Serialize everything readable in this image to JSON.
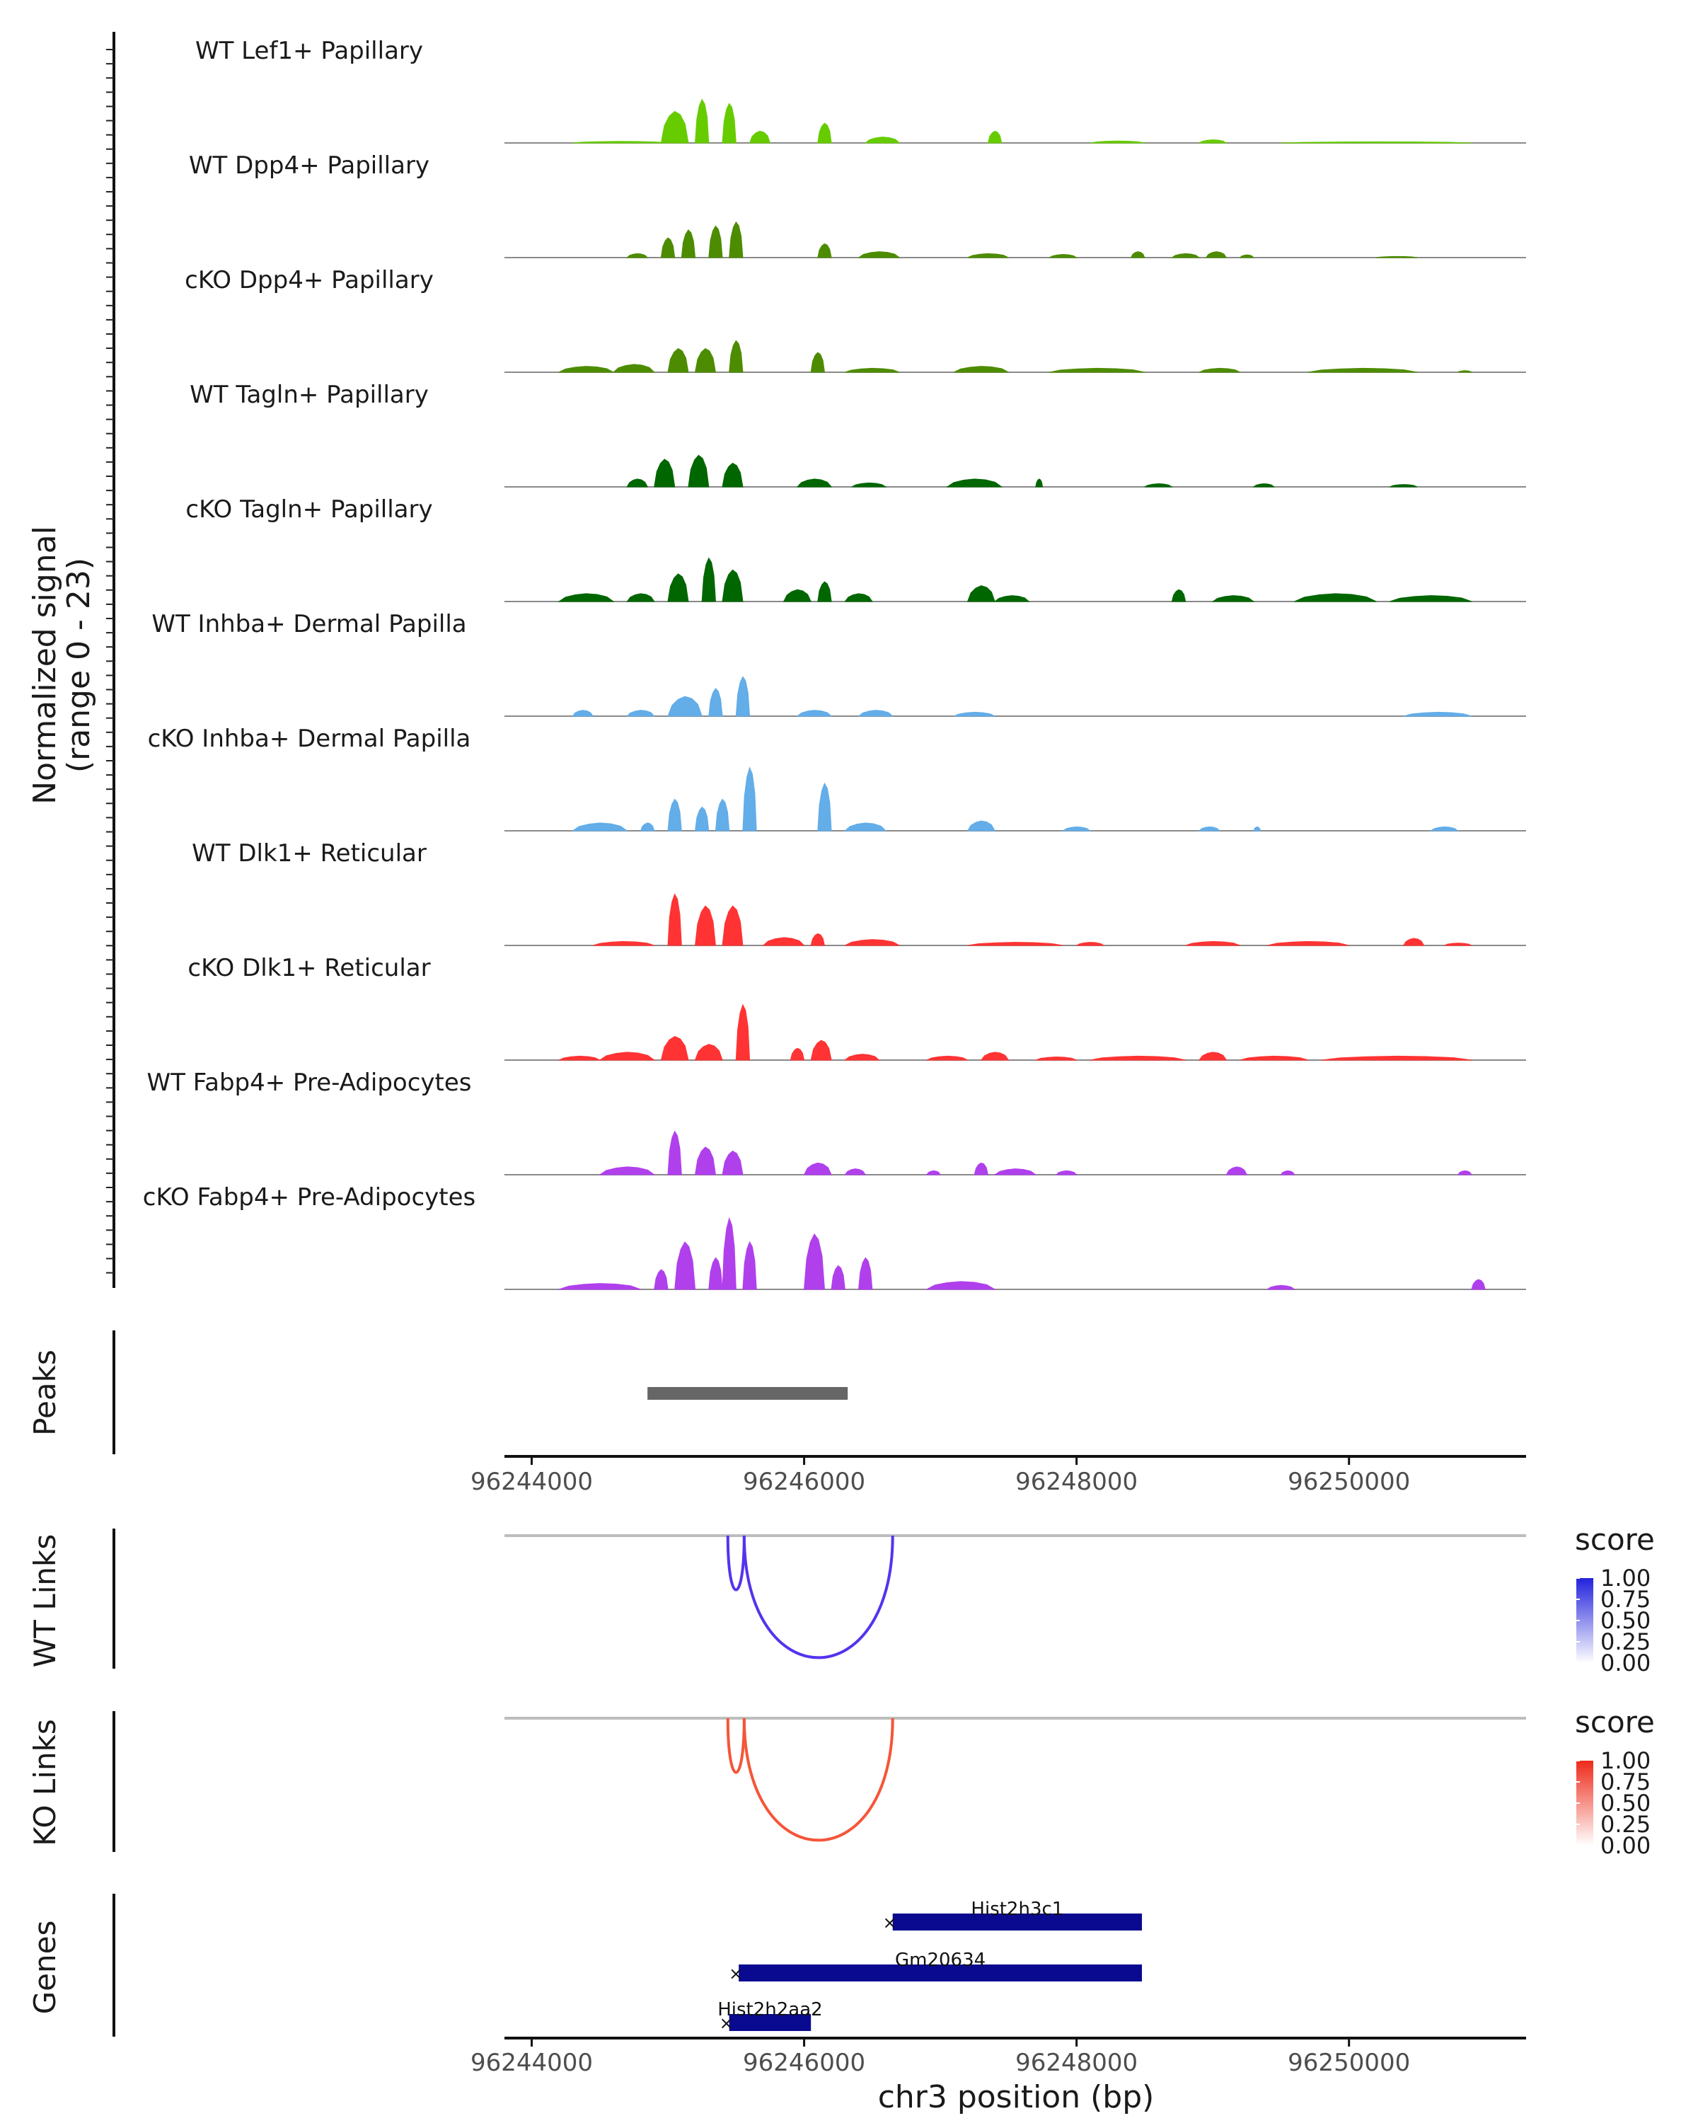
{
  "chart_data": {
    "type": "area",
    "region": {
      "chromosome": "chr3",
      "start": 96243800,
      "end": 96251300
    },
    "coverage": {
      "ylabel_line1": "Normalized signal",
      "ylabel_line2": "(range 0 - 23)",
      "ylim": [
        0,
        23
      ],
      "tracks": [
        {
          "label": "WT Lef1+ Papillary",
          "color": "#66cc00",
          "peaks": [
            [
              96244300,
              96245000,
              0.4
            ],
            [
              96244950,
              96245150,
              8
            ],
            [
              96245200,
              96245300,
              11
            ],
            [
              96245400,
              96245500,
              10
            ],
            [
              96245600,
              96245750,
              3
            ],
            [
              96246100,
              96246200,
              5
            ],
            [
              96246450,
              96246700,
              1.5
            ],
            [
              96247350,
              96247450,
              3
            ],
            [
              96248100,
              96248500,
              0.5
            ],
            [
              96248900,
              96249100,
              0.8
            ],
            [
              96249500,
              96250900,
              0.3
            ]
          ]
        },
        {
          "label": "WT Dpp4+ Papillary",
          "color": "#4d8c00",
          "peaks": [
            [
              96244700,
              96244850,
              1
            ],
            [
              96244950,
              96245050,
              5
            ],
            [
              96245100,
              96245200,
              7
            ],
            [
              96245300,
              96245400,
              8
            ],
            [
              96245450,
              96245550,
              9
            ],
            [
              96246100,
              96246200,
              3.5
            ],
            [
              96246400,
              96246700,
              1.5
            ],
            [
              96247200,
              96247500,
              1
            ],
            [
              96247800,
              96248000,
              0.8
            ],
            [
              96248400,
              96248500,
              1.5
            ],
            [
              96248700,
              96248900,
              1
            ],
            [
              96248950,
              96249100,
              1.5
            ],
            [
              96249200,
              96249300,
              0.7
            ],
            [
              96250200,
              96250500,
              0.3
            ]
          ]
        },
        {
          "label": "cKO Dpp4+ Papillary",
          "color": "#4d8c00",
          "peaks": [
            [
              96244200,
              96244600,
              1.5
            ],
            [
              96244600,
              96244900,
              2
            ],
            [
              96245000,
              96245150,
              6
            ],
            [
              96245200,
              96245350,
              6
            ],
            [
              96245450,
              96245550,
              8
            ],
            [
              96246050,
              96246150,
              5
            ],
            [
              96246300,
              96246700,
              1
            ],
            [
              96247100,
              96247500,
              1.5
            ],
            [
              96247800,
              96248500,
              1
            ],
            [
              96248900,
              96249200,
              1
            ],
            [
              96249700,
              96250500,
              1
            ],
            [
              96250800,
              96250900,
              0.4
            ]
          ]
        },
        {
          "label": "WT Tagln+ Papillary",
          "color": "#006600",
          "peaks": [
            [
              96244700,
              96244850,
              2
            ],
            [
              96244900,
              96245050,
              7
            ],
            [
              96245150,
              96245300,
              8
            ],
            [
              96245400,
              96245550,
              6
            ],
            [
              96245950,
              96246200,
              2
            ],
            [
              96246350,
              96246600,
              1
            ],
            [
              96247050,
              96247450,
              2
            ],
            [
              96247700,
              96247750,
              2
            ],
            [
              96248500,
              96248700,
              0.8
            ],
            [
              96249300,
              96249450,
              0.8
            ],
            [
              96250300,
              96250500,
              0.6
            ]
          ]
        },
        {
          "label": "cKO Tagln+ Papillary",
          "color": "#006600",
          "peaks": [
            [
              96244200,
              96244600,
              2
            ],
            [
              96244700,
              96244900,
              2
            ],
            [
              96245000,
              96245150,
              7
            ],
            [
              96245250,
              96245350,
              11
            ],
            [
              96245400,
              96245550,
              8
            ],
            [
              96245850,
              96246050,
              3
            ],
            [
              96246100,
              96246200,
              5
            ],
            [
              96246300,
              96246500,
              2
            ],
            [
              96247200,
              96247400,
              4
            ],
            [
              96247400,
              96247650,
              1.5
            ],
            [
              96248700,
              96248800,
              3
            ],
            [
              96249000,
              96249300,
              1.5
            ],
            [
              96249600,
              96250200,
              2
            ],
            [
              96250300,
              96250900,
              1.5
            ]
          ]
        },
        {
          "label": "WT Inhba+ Dermal Papilla",
          "color": "#63ade8",
          "peaks": [
            [
              96244300,
              96244450,
              1.5
            ],
            [
              96244700,
              96244900,
              1.5
            ],
            [
              96245000,
              96245250,
              5
            ],
            [
              96245300,
              96245400,
              7
            ],
            [
              96245500,
              96245600,
              10
            ],
            [
              96245950,
              96246200,
              1.5
            ],
            [
              96246400,
              96246650,
              1.5
            ],
            [
              96247100,
              96247400,
              1
            ],
            [
              96250400,
              96250900,
              1
            ]
          ]
        },
        {
          "label": "cKO Inhba+ Dermal Papilla",
          "color": "#63ade8",
          "peaks": [
            [
              96244300,
              96244700,
              2
            ],
            [
              96244800,
              96244900,
              2
            ],
            [
              96245000,
              96245100,
              8
            ],
            [
              96245200,
              96245300,
              6
            ],
            [
              96245350,
              96245450,
              8
            ],
            [
              96245550,
              96245650,
              16
            ],
            [
              96246100,
              96246200,
              12
            ],
            [
              96246300,
              96246600,
              2
            ],
            [
              96247200,
              96247400,
              2.5
            ],
            [
              96247900,
              96248100,
              1
            ],
            [
              96248900,
              96249050,
              1
            ],
            [
              96249300,
              96249350,
              1
            ],
            [
              96250600,
              96250800,
              1
            ]
          ]
        },
        {
          "label": "WT Dlk1+ Reticular",
          "color": "#ff3333",
          "peaks": [
            [
              96244450,
              96244900,
              1
            ],
            [
              96245000,
              96245100,
              13
            ],
            [
              96245200,
              96245350,
              10
            ],
            [
              96245400,
              96245550,
              10
            ],
            [
              96245700,
              96246000,
              2
            ],
            [
              96246050,
              96246150,
              3
            ],
            [
              96246300,
              96246700,
              1.5
            ],
            [
              96247200,
              96247900,
              0.8
            ],
            [
              96248000,
              96248200,
              0.8
            ],
            [
              96248800,
              96249200,
              1
            ],
            [
              96249400,
              96250000,
              1
            ],
            [
              96250400,
              96250550,
              1.8
            ],
            [
              96250700,
              96250900,
              0.6
            ]
          ]
        },
        {
          "label": "cKO Dlk1+ Reticular",
          "color": "#ff3333",
          "peaks": [
            [
              96244200,
              96244500,
              1
            ],
            [
              96244500,
              96244900,
              2
            ],
            [
              96244950,
              96245150,
              6
            ],
            [
              96245200,
              96245400,
              4
            ],
            [
              96245500,
              96245600,
              14
            ],
            [
              96245900,
              96246000,
              3
            ],
            [
              96246050,
              96246200,
              5
            ],
            [
              96246300,
              96246550,
              1.5
            ],
            [
              96246900,
              96247200,
              1
            ],
            [
              96247300,
              96247500,
              2
            ],
            [
              96247700,
              96248000,
              0.8
            ],
            [
              96248100,
              96248800,
              1
            ],
            [
              96248900,
              96249100,
              2
            ],
            [
              96249200,
              96249700,
              1
            ],
            [
              96249800,
              96250900,
              1
            ]
          ]
        },
        {
          "label": "WT Fabp4+ Pre-Adipocytes",
          "color": "#b040ec",
          "peaks": [
            [
              96244500,
              96244900,
              2
            ],
            [
              96245000,
              96245100,
              11
            ],
            [
              96245200,
              96245350,
              7
            ],
            [
              96245400,
              96245550,
              6
            ],
            [
              96246000,
              96246200,
              3
            ],
            [
              96246300,
              96246450,
              1.5
            ],
            [
              96246900,
              96247000,
              1
            ],
            [
              96247250,
              96247350,
              3
            ],
            [
              96247400,
              96247700,
              1.5
            ],
            [
              96247850,
              96248000,
              1
            ],
            [
              96249100,
              96249250,
              2
            ],
            [
              96249500,
              96249600,
              1
            ],
            [
              96250800,
              96250900,
              1
            ]
          ]
        },
        {
          "label": "cKO Fabp4+ Pre-Adipocytes",
          "color": "#b040ec",
          "peaks": [
            [
              96244200,
              96244800,
              1.5
            ],
            [
              96244900,
              96245000,
              5
            ],
            [
              96245050,
              96245200,
              12
            ],
            [
              96245300,
              96245400,
              8
            ],
            [
              96245400,
              96245500,
              18
            ],
            [
              96245550,
              96245650,
              12
            ],
            [
              96246000,
              96246150,
              14
            ],
            [
              96246200,
              96246300,
              6
            ],
            [
              96246400,
              96246500,
              8
            ],
            [
              96246900,
              96247400,
              2
            ],
            [
              96249400,
              96249600,
              1
            ],
            [
              96250900,
              96251000,
              2.5
            ]
          ]
        }
      ]
    },
    "peaks": {
      "title": "Peaks",
      "intervals": [
        [
          96244850,
          96246320
        ]
      ],
      "color": "#666666"
    },
    "axis1": {
      "ticks": [
        96244000,
        96246000,
        96248000,
        96250000
      ],
      "tick_labels": [
        "96244000",
        "96246000",
        "96248000",
        "96250000"
      ]
    },
    "wt_links": {
      "title": "WT Links",
      "color": "#5533ee",
      "links": [
        [
          96245440,
          96245560,
          0.4
        ],
        [
          96245560,
          96246650,
          0.9
        ]
      ]
    },
    "ko_links": {
      "title": "KO Links",
      "color": "#f55538",
      "links": [
        [
          96245440,
          96245560,
          0.4
        ],
        [
          96245560,
          96246650,
          0.9
        ]
      ]
    },
    "genes": {
      "title": "Genes",
      "color": "#0a0a90",
      "items": [
        {
          "name": "Hist2h3c1",
          "start": 96246650,
          "end": 96248480,
          "row": 0
        },
        {
          "name": "Gm20634",
          "start": 96245520,
          "end": 96248480,
          "row": 1
        },
        {
          "name": "Hist2h2aa2",
          "start": 96245450,
          "end": 96246050,
          "row": 2
        }
      ]
    },
    "axis2": {
      "ticks": [
        96244000,
        96246000,
        96248000,
        96250000
      ],
      "tick_labels": [
        "96244000",
        "96246000",
        "96248000",
        "96250000"
      ],
      "xlabel": "chr3 position (bp)"
    },
    "legends": [
      {
        "title": "score",
        "color": "#2222dd",
        "ticks": [
          "1.00",
          "0.75",
          "0.50",
          "0.25",
          "0.00"
        ]
      },
      {
        "title": "score",
        "color": "#ee2a1a",
        "ticks": [
          "1.00",
          "0.75",
          "0.50",
          "0.25",
          "0.00"
        ]
      }
    ]
  }
}
